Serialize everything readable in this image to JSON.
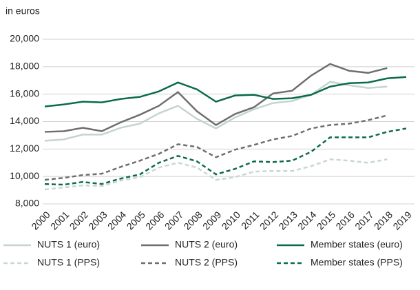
{
  "chart_data": {
    "type": "line",
    "y_label": "in euros",
    "categories": [
      "2000",
      "2001",
      "2002",
      "2003",
      "2004",
      "2005",
      "2006",
      "2007",
      "2008",
      "2009",
      "2010",
      "2011",
      "2012",
      "2013",
      "2014",
      "2015",
      "2016",
      "2017",
      "2018",
      "2019"
    ],
    "ylim": [
      8000,
      20000
    ],
    "yticks": [
      {
        "value": 8000,
        "label": "8,000"
      },
      {
        "value": 10000,
        "label": "10,000"
      },
      {
        "value": 12000,
        "label": "12,000"
      },
      {
        "value": 14000,
        "label": "14,000"
      },
      {
        "value": 16000,
        "label": "16,000"
      },
      {
        "value": 18000,
        "label": "18,000"
      },
      {
        "value": 20000,
        "label": "20,000"
      }
    ],
    "grid": true,
    "series": [
      {
        "name": "NUTS 1 (euro)",
        "color": "#c3d5cc",
        "dashed": false,
        "values": [
          12600,
          12700,
          13050,
          13050,
          13550,
          13850,
          14600,
          15150,
          14200,
          13500,
          14300,
          14900,
          15350,
          15500,
          15950,
          16900,
          16650,
          16450,
          16550,
          null
        ]
      },
      {
        "name": "NUTS 2 (euro)",
        "color": "#6e6e6e",
        "dashed": false,
        "values": [
          13250,
          13300,
          13550,
          13300,
          13950,
          14500,
          15150,
          16150,
          14750,
          13750,
          14550,
          15050,
          16050,
          16250,
          17350,
          18200,
          17700,
          17550,
          17900,
          null
        ]
      },
      {
        "name": "Member states (euro)",
        "color": "#0b6b4d",
        "dashed": false,
        "values": [
          15100,
          15250,
          15450,
          15400,
          15650,
          15800,
          16200,
          16850,
          16350,
          15450,
          15900,
          15950,
          15650,
          15700,
          15950,
          16550,
          16800,
          16850,
          17150,
          17250
        ]
      },
      {
        "name": "NUTS 1 (PPS)",
        "color": "#c8d8d0",
        "dashed": true,
        "values": [
          9050,
          9200,
          9350,
          9300,
          9700,
          9950,
          10650,
          11000,
          10650,
          9750,
          9950,
          10350,
          10400,
          10400,
          10750,
          11250,
          11150,
          11000,
          11250,
          null
        ]
      },
      {
        "name": "NUTS 2 (PPS)",
        "color": "#6e6e6e",
        "dashed": true,
        "values": [
          9750,
          9900,
          10100,
          10200,
          10700,
          11150,
          11650,
          12350,
          12150,
          11400,
          11950,
          12300,
          12700,
          12950,
          13500,
          13750,
          13850,
          14100,
          14450,
          null
        ]
      },
      {
        "name": "Member states (PPS)",
        "color": "#0b6b4d",
        "dashed": true,
        "values": [
          9450,
          9400,
          9600,
          9450,
          9850,
          10150,
          11000,
          11500,
          11100,
          10150,
          10550,
          11100,
          11050,
          11150,
          11800,
          12850,
          12850,
          12850,
          13250,
          13500
        ]
      }
    ]
  }
}
